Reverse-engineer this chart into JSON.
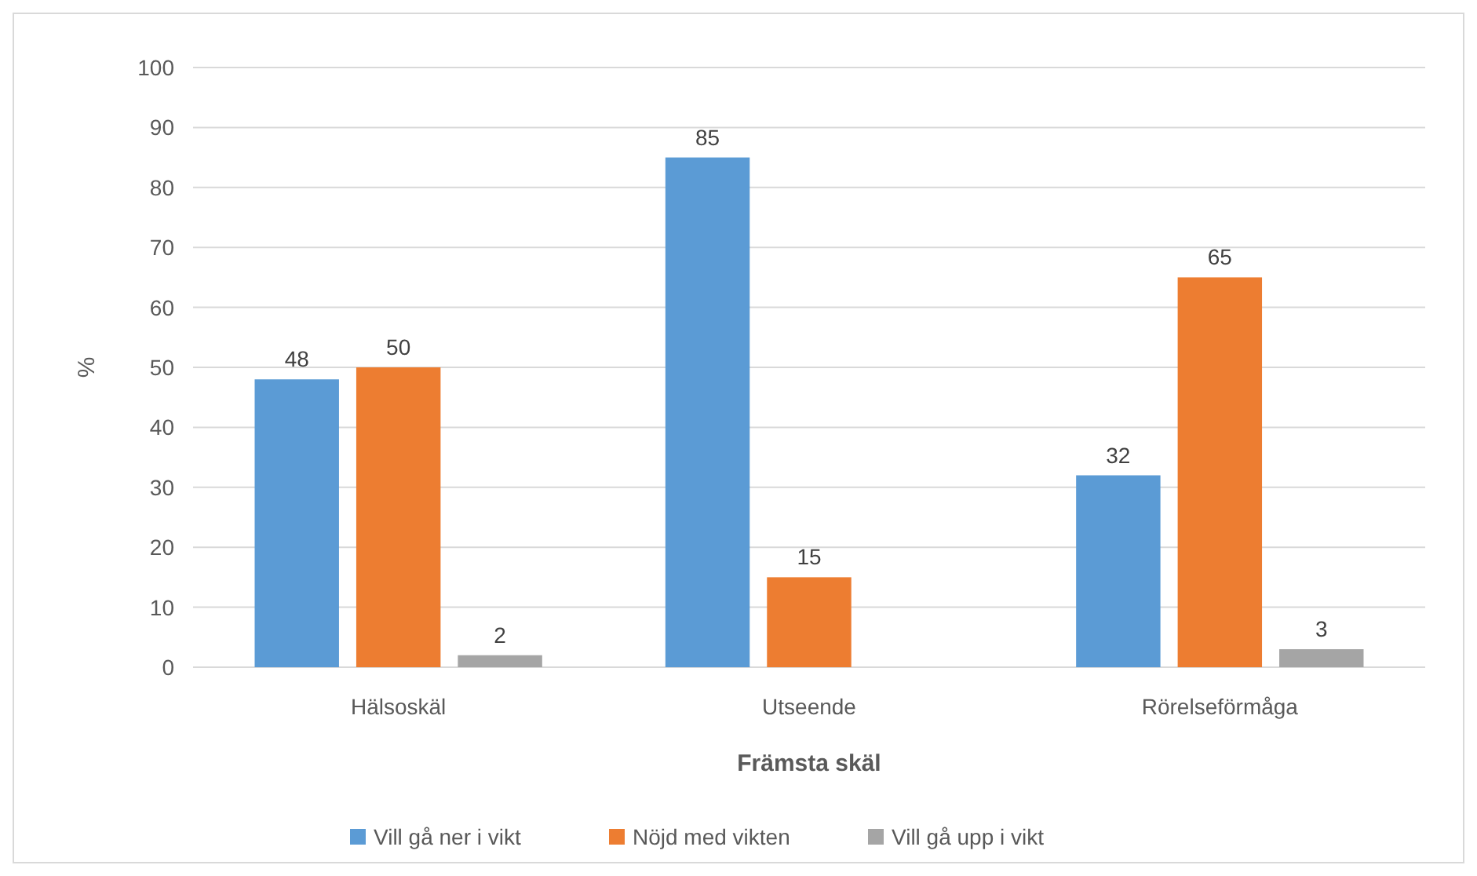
{
  "chart_data": {
    "type": "bar",
    "xlabel": "Främsta skäl",
    "ylabel": "%",
    "categories": [
      "Hälsoskäl",
      "Utseende",
      "Rörelseförmåga"
    ],
    "series": [
      {
        "name": "Vill gå ner i vikt",
        "color": "#5b9bd5",
        "values": [
          48,
          85,
          32
        ]
      },
      {
        "name": "Nöjd med vikten",
        "color": "#ed7d31",
        "values": [
          50,
          15,
          65
        ]
      },
      {
        "name": "Vill gå upp i vikt",
        "color": "#a5a5a5",
        "values": [
          2,
          null,
          3
        ]
      }
    ],
    "ylim": [
      0,
      100
    ],
    "yticks": [
      0,
      10,
      20,
      30,
      40,
      50,
      60,
      70,
      80,
      90,
      100
    ],
    "grid": "y",
    "data_labels": true,
    "legend": "bottom"
  }
}
